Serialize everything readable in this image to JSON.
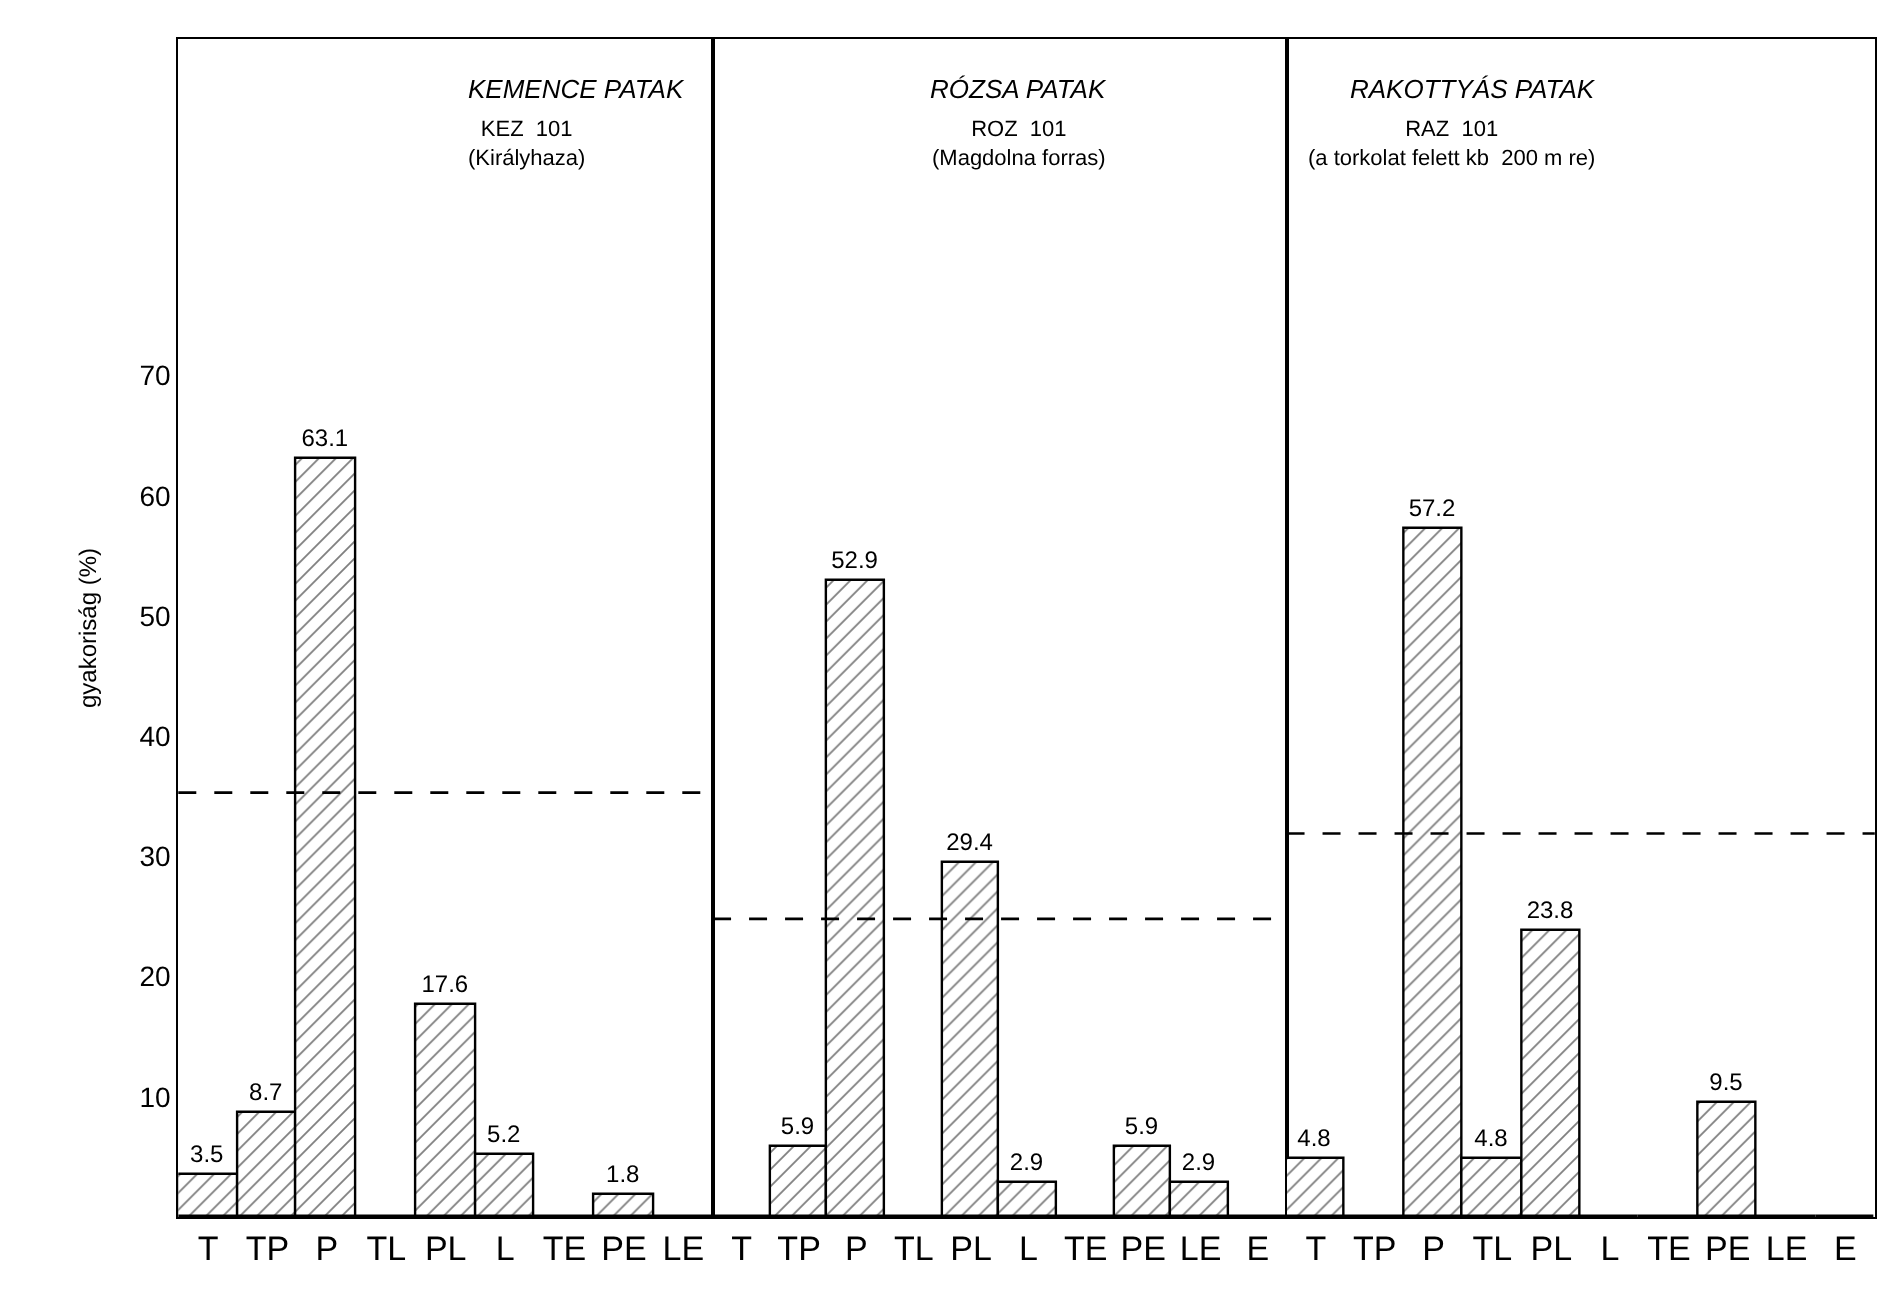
{
  "chart_data": [
    {
      "type": "bar",
      "title": "KEMENCE PATAK",
      "subtitle": "KEZ  101\n(Királyhaza)",
      "ylabel": "gyakoriság (%)",
      "categories": [
        "T",
        "TP",
        "P",
        "TL",
        "PL",
        "L",
        "TE",
        "PE",
        "LE"
      ],
      "values": [
        3.5,
        8.7,
        63.1,
        0,
        17.6,
        5.2,
        0,
        1.8,
        0
      ],
      "value_labels": [
        "3.5",
        "8.7",
        "63.1",
        null,
        "17.6",
        "5.2",
        null,
        "1.8",
        null
      ],
      "color": "#000000",
      "ylim": [
        0,
        98
      ],
      "yticks": [
        10,
        20,
        30,
        40,
        50,
        60,
        70
      ],
      "grid": false,
      "legend": false,
      "ref_lines": [
        {
          "axis": "y",
          "value": 35.3,
          "line_style": "dashed",
          "color": "#000000"
        }
      ]
    },
    {
      "type": "bar",
      "title": "RÓZSA PATAK",
      "subtitle": "ROZ  101\n(Magdolna forras)",
      "categories": [
        "T",
        "TP",
        "P",
        "TL",
        "PL",
        "L",
        "TE",
        "PE",
        "LE",
        "E"
      ],
      "values": [
        0,
        5.9,
        52.9,
        0,
        29.4,
        2.9,
        0,
        5.9,
        2.9,
        0
      ],
      "value_labels": [
        null,
        "5.9",
        "52.9",
        null,
        "29.4",
        "2.9",
        null,
        "5.9",
        "2.9",
        null
      ],
      "color": "#000000",
      "ylim": [
        0,
        98
      ],
      "yticks": [
        10,
        20,
        30,
        40,
        50,
        60,
        70
      ],
      "tick_labels": "x",
      "grid": false,
      "legend": false,
      "ref_lines": [
        {
          "axis": "y",
          "value": 24.8,
          "line_style": "dashed",
          "color": "#000000"
        }
      ]
    },
    {
      "type": "bar",
      "title": "RAKOTTYÁS PATAK",
      "subtitle": "RAZ  101\n(a torkolat felett kb  200 m re)",
      "categories": [
        "T",
        "TP",
        "P",
        "TL",
        "PL",
        "L",
        "TE",
        "PE",
        "LE",
        "E"
      ],
      "values": [
        4.8,
        0,
        57.2,
        4.8,
        23.8,
        0,
        0,
        9.5,
        0,
        0
      ],
      "value_labels": [
        "4.8",
        null,
        "57.2",
        "4.8",
        "23.8",
        null,
        null,
        "9.5",
        null,
        null
      ],
      "color": "#000000",
      "ylim": [
        0,
        98
      ],
      "yticks": [
        10,
        20,
        30,
        40,
        50,
        60,
        70
      ],
      "tick_labels": "x",
      "grid": false,
      "legend": false,
      "ref_lines": [
        {
          "axis": "y",
          "value": 31.9,
          "line_style": "dashed",
          "color": "#000000"
        }
      ]
    }
  ]
}
